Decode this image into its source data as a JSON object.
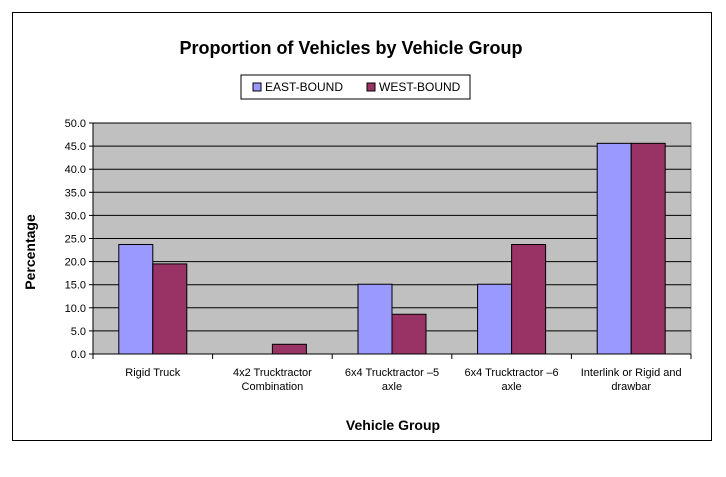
{
  "chart_data": {
    "type": "bar",
    "title": "Proportion of Vehicles by Vehicle Group",
    "xlabel": "Vehicle Group",
    "ylabel": "Percentage",
    "categories": [
      [
        "Rigid Truck"
      ],
      [
        "4x2 Trucktractor",
        "Combination"
      ],
      [
        "6x4 Trucktractor –5",
        "axle"
      ],
      [
        "6x4 Trucktractor –6",
        "axle"
      ],
      [
        "Interlink or Rigid and",
        "drawbar"
      ]
    ],
    "series": [
      {
        "name": "EAST-BOUND",
        "color": "#9999ff",
        "values": [
          23.7,
          0.0,
          15.1,
          15.1,
          45.6
        ]
      },
      {
        "name": "WEST-BOUND",
        "color": "#993366",
        "values": [
          19.5,
          2.1,
          8.6,
          23.7,
          45.6
        ]
      }
    ],
    "ylim": [
      0,
      50
    ],
    "yticks": [
      "0.0",
      "5.0",
      "10.0",
      "15.0",
      "20.0",
      "25.0",
      "30.0",
      "35.0",
      "40.0",
      "45.0",
      "50.0"
    ],
    "grid": true,
    "legend": "top",
    "plot_background": "#c0c0c0"
  }
}
